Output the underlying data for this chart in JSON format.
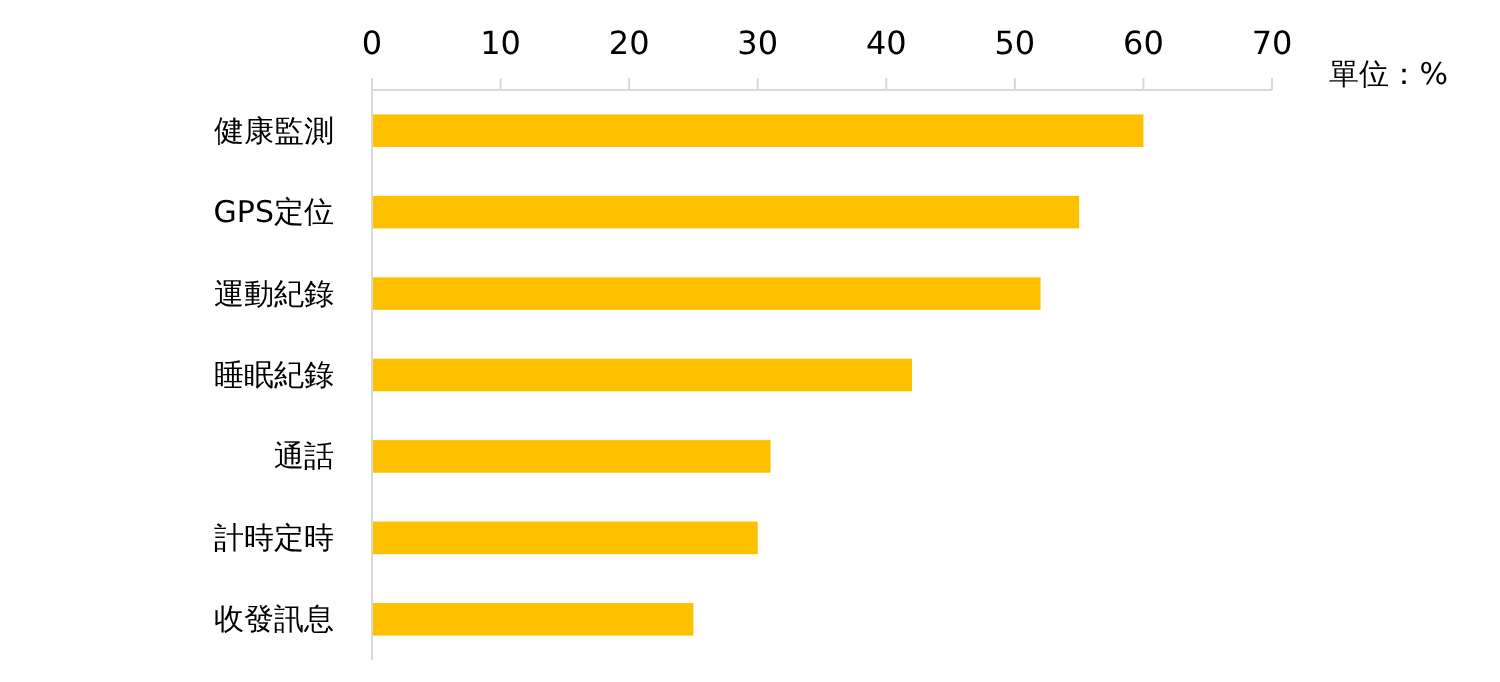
{
  "chart_data": {
    "type": "bar",
    "orientation": "horizontal",
    "xlabel": "單位：%",
    "categories": [
      "健康監測",
      "GPS定位",
      "運動紀錄",
      "睡眠紀錄",
      "通話",
      "計時定時",
      "收發訊息"
    ],
    "values": [
      60,
      55,
      52,
      42,
      31,
      30,
      25
    ],
    "color": "#ffc000",
    "xlim": [
      0,
      70
    ],
    "xticks": [
      0,
      10,
      20,
      30,
      40,
      50,
      60,
      70
    ],
    "grid": false
  }
}
